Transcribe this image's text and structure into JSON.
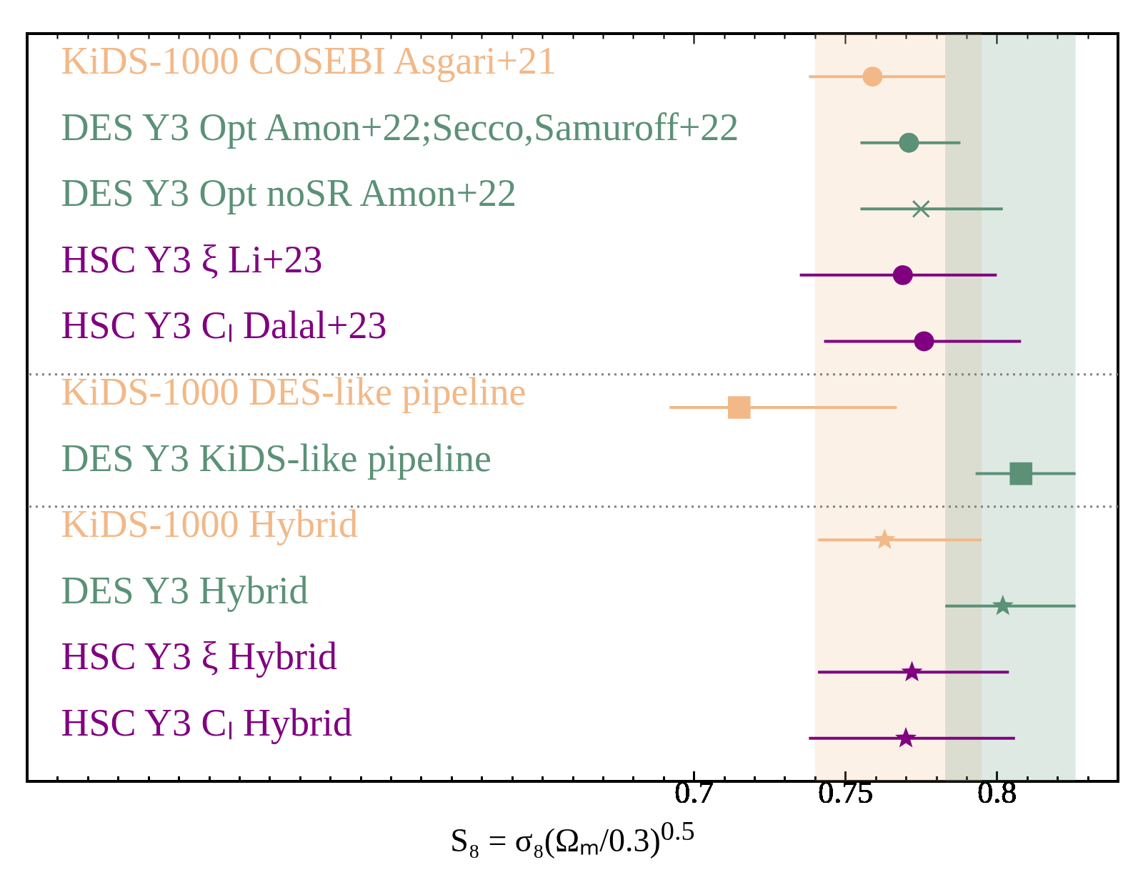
{
  "chart_data": {
    "type": "scatter",
    "orientation": "horizontal",
    "xlabel": "S₈ = σ₈(Ωₘ/0.3)$^{0.5}$",
    "categories": [
      "KiDS-1000 COSEBI Asgari+21",
      "DES Y3 Opt Amon+22;Secco,Samuroff+22",
      "DES Y3 Opt noSR Amon+22",
      "HSC Y3 ξ Li+23",
      "HSC Y3 Cₗ Dalal+23",
      "KiDS-1000 DES-like pipeline",
      "DES Y3 KiDS-like pipeline",
      "KiDS-1000 Hybrid",
      "DES Y3 Hybrid",
      "HSC Y3 ξ Hybrid",
      "HSC Y3 Cₗ Hybrid"
    ],
    "series": [
      {
        "color": "#f2b887",
        "marker": "circle",
        "values": [
          0.759,
          null,
          null,
          null,
          null,
          null,
          null,
          null,
          null,
          null,
          null
        ],
        "errors": [
          [
            0.738,
            0.783
          ],
          null,
          null,
          null,
          null,
          null,
          null,
          null,
          null,
          null,
          null
        ]
      },
      {
        "color": "#5b9177",
        "marker": "circle",
        "values": [
          null,
          0.771,
          null,
          null,
          null,
          null,
          null,
          null,
          null,
          null,
          null
        ],
        "errors": [
          null,
          [
            0.755,
            0.788
          ],
          null,
          null,
          null,
          null,
          null,
          null,
          null,
          null,
          null
        ]
      },
      {
        "color": "#5b9177",
        "marker": "cross",
        "values": [
          null,
          null,
          0.775,
          null,
          null,
          null,
          null,
          null,
          null,
          null,
          null
        ],
        "errors": [
          null,
          null,
          [
            0.755,
            0.802
          ],
          null,
          null,
          null,
          null,
          null,
          null,
          null,
          null
        ]
      },
      {
        "color": "#800080",
        "marker": "circle",
        "values": [
          null,
          null,
          null,
          0.769,
          0.776,
          null,
          null,
          null,
          null,
          null,
          null
        ],
        "errors": [
          null,
          null,
          null,
          [
            0.735,
            0.8
          ],
          [
            0.743,
            0.808
          ],
          null,
          null,
          null,
          null,
          null,
          null
        ]
      },
      {
        "color": "#f2b887",
        "marker": "square",
        "values": [
          null,
          null,
          null,
          null,
          null,
          0.715,
          null,
          null,
          null,
          null,
          null
        ],
        "errors": [
          null,
          null,
          null,
          null,
          null,
          [
            0.692,
            0.767
          ],
          null,
          null,
          null,
          null,
          null
        ]
      },
      {
        "color": "#5b9177",
        "marker": "square",
        "values": [
          null,
          null,
          null,
          null,
          null,
          null,
          0.808,
          null,
          null,
          null,
          null
        ],
        "errors": [
          null,
          null,
          null,
          null,
          null,
          null,
          [
            0.793,
            0.826
          ],
          null,
          null,
          null,
          null
        ]
      },
      {
        "color": "#f2b887",
        "marker": "star",
        "values": [
          null,
          null,
          null,
          null,
          null,
          null,
          null,
          0.763,
          null,
          null,
          null
        ],
        "errors": [
          null,
          null,
          null,
          null,
          null,
          null,
          null,
          [
            0.741,
            0.795
          ],
          null,
          null,
          null
        ]
      },
      {
        "color": "#5b9177",
        "marker": "star",
        "values": [
          null,
          null,
          null,
          null,
          null,
          null,
          null,
          null,
          0.802,
          null,
          null
        ],
        "errors": [
          null,
          null,
          null,
          null,
          null,
          null,
          null,
          null,
          [
            0.783,
            0.826
          ],
          null,
          null
        ]
      },
      {
        "color": "#800080",
        "marker": "star",
        "values": [
          null,
          null,
          null,
          null,
          null,
          null,
          null,
          null,
          null,
          0.772,
          0.77
        ],
        "errors": [
          null,
          null,
          null,
          null,
          null,
          null,
          null,
          null,
          null,
          [
            0.741,
            0.804
          ],
          [
            0.738,
            0.806
          ]
        ]
      }
    ],
    "xlim": [
      0.48,
      0.84
    ],
    "xticks": [
      {
        "value": 0.49,
        "label": null
      },
      {
        "value": 0.5,
        "label": null
      },
      {
        "value": 0.51,
        "label": null
      },
      {
        "value": 0.52,
        "label": null
      },
      {
        "value": 0.53,
        "label": null
      },
      {
        "value": 0.54,
        "label": null
      },
      {
        "value": 0.55,
        "label": null
      },
      {
        "value": 0.56,
        "label": null
      },
      {
        "value": 0.57,
        "label": null
      },
      {
        "value": 0.58,
        "label": null
      },
      {
        "value": 0.59,
        "label": null
      },
      {
        "value": 0.6,
        "label": null
      },
      {
        "value": 0.61,
        "label": null
      },
      {
        "value": 0.62,
        "label": null
      },
      {
        "value": 0.63,
        "label": null
      },
      {
        "value": 0.64,
        "label": null
      },
      {
        "value": 0.65,
        "label": null
      },
      {
        "value": 0.66,
        "label": null
      },
      {
        "value": 0.67,
        "label": null
      },
      {
        "value": 0.68,
        "label": null
      },
      {
        "value": 0.69,
        "label": null
      },
      0.7,
      {
        "value": 0.71,
        "label": null
      },
      {
        "value": 0.72,
        "label": null
      },
      {
        "value": 0.73,
        "label": null
      },
      {
        "value": 0.74,
        "label": null
      },
      0.75,
      {
        "value": 0.76,
        "label": null
      },
      {
        "value": 0.77,
        "label": null
      },
      {
        "value": 0.78,
        "label": null
      },
      {
        "value": 0.79,
        "label": null
      },
      0.8,
      {
        "value": 0.81,
        "label": null
      },
      {
        "value": 0.82,
        "label": null
      },
      {
        "value": 0.83,
        "label": null
      }
    ],
    "bands": [
      {
        "axis": "x",
        "from": 0.74,
        "to": 0.795,
        "color": "#f2b887"
      },
      {
        "axis": "x",
        "from": 0.783,
        "to": 0.826,
        "color": "#5b9177"
      }
    ],
    "ref_lines": [
      {
        "axis": "y",
        "value": "KiDS-1000 DES-like pipeline",
        "color": "#808080",
        "line_style": "dotted"
      },
      {
        "axis": "y",
        "value": "KiDS-1000 Hybrid",
        "color": "#808080",
        "line_style": "dotted"
      }
    ]
  }
}
